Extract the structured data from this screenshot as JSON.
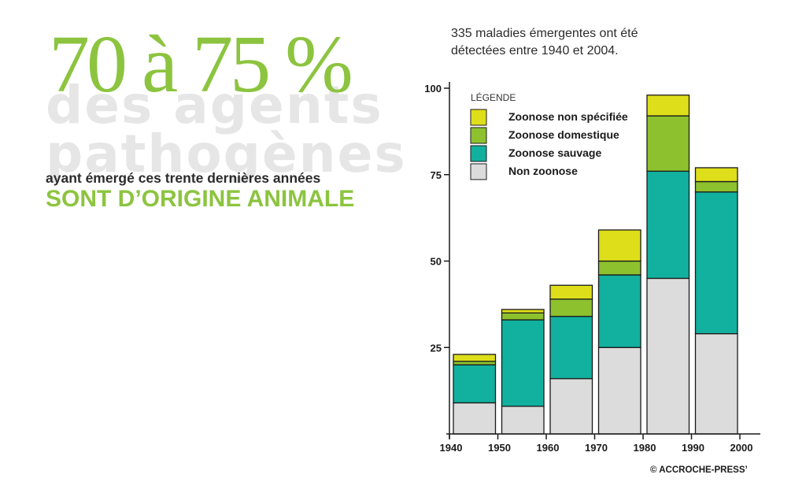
{
  "headline": {
    "percent": "70 à 75 %",
    "line1": "des agents",
    "line2": "pathogènes",
    "line3": "ayant émergé ces trente dernières années",
    "line4": "SONT D’ORIGINE ANIMALE"
  },
  "chart_subtitle": {
    "line1": "335 maladies émergentes ont été",
    "line2": "détectées entre 1940 et 2004."
  },
  "copyright": "© ACCROCHE-PRESS’",
  "colors": {
    "accent": "#8cc43f",
    "headline_grey": "#e6e6e6",
    "zoonose_non_specifiee": "#dede1a",
    "zoonose_domestique": "#8dc12e",
    "zoonose_sauvage": "#12b09e",
    "non_zoonose": "#dcdcdc"
  },
  "chart_data": {
    "type": "bar",
    "stacked": true,
    "title": "",
    "xlabel": "",
    "ylabel": "",
    "ylim": [
      0,
      100
    ],
    "y_ticks": [
      25,
      50,
      75,
      100
    ],
    "x_ticks": [
      "1940",
      "1950",
      "1960",
      "1970",
      "1980",
      "1990",
      "2000"
    ],
    "categories": [
      "1940s",
      "1950s",
      "1960s",
      "1970s",
      "1980s",
      "1990s"
    ],
    "legend_title": "LÉGENDE",
    "legend_position": "top-left",
    "series": [
      {
        "name": "Non zoonose",
        "color": "#dcdcdc",
        "values": [
          9,
          8,
          16,
          25,
          45,
          29
        ]
      },
      {
        "name": "Zoonose sauvage",
        "color": "#12b09e",
        "values": [
          11,
          25,
          18,
          21,
          31,
          41
        ]
      },
      {
        "name": "Zoonose domestique",
        "color": "#8dc12e",
        "values": [
          1,
          2,
          5,
          4,
          16,
          3
        ]
      },
      {
        "name": "Zoonose non spécifiée",
        "color": "#dede1a",
        "values": [
          2,
          1,
          4,
          9,
          6,
          4
        ]
      }
    ],
    "legend_order": [
      "Zoonose non spécifiée",
      "Zoonose domestique",
      "Zoonose sauvage",
      "Non zoonose"
    ]
  }
}
